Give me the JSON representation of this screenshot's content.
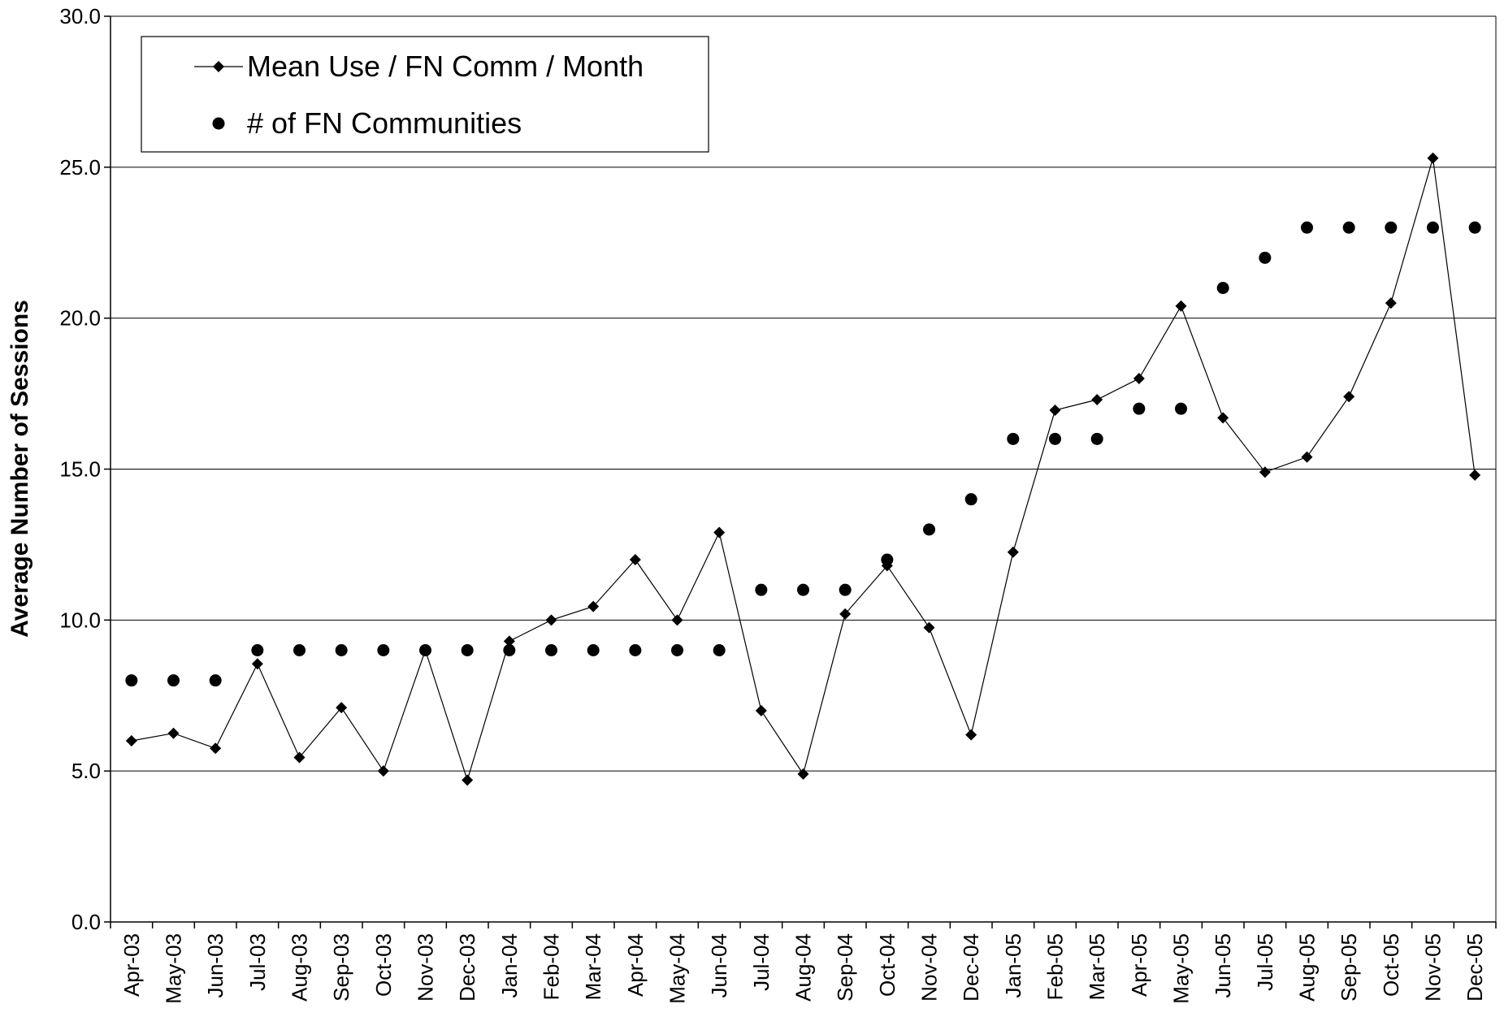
{
  "chart_data": {
    "type": "line",
    "y_label": "Average Number of Sessions",
    "categories": [
      "Apr-03",
      "May-03",
      "Jun-03",
      "Jul-03",
      "Aug-03",
      "Sep-03",
      "Oct-03",
      "Nov-03",
      "Dec-03",
      "Jan-04",
      "Feb-04",
      "Mar-04",
      "Apr-04",
      "May-04",
      "Jun-04",
      "Jul-04",
      "Aug-04",
      "Sep-04",
      "Oct-04",
      "Nov-04",
      "Dec-04",
      "Jan-05",
      "Feb-05",
      "Mar-05",
      "Apr-05",
      "May-05",
      "Jun-05",
      "Jul-05",
      "Aug-05",
      "Sep-05",
      "Oct-05",
      "Nov-05",
      "Dec-05"
    ],
    "series": [
      {
        "name": "Mean Use / FN Comm / Month",
        "type": "line",
        "color": "#000000",
        "values": [
          6.0,
          6.25,
          5.75,
          8.55,
          5.45,
          7.1,
          5.0,
          9.0,
          4.7,
          9.3,
          10.0,
          10.45,
          12.0,
          10.0,
          12.9,
          7.0,
          4.9,
          10.2,
          11.8,
          9.75,
          6.2,
          12.25,
          16.95,
          17.3,
          18.0,
          20.4,
          16.7,
          14.9,
          15.4,
          17.4,
          20.5,
          25.3,
          14.8
        ]
      },
      {
        "name": "# of FN Communities",
        "type": "scatter",
        "color": "#000000",
        "values": [
          8,
          8,
          8,
          9,
          9,
          9,
          9,
          9,
          9,
          9,
          9,
          9,
          9,
          9,
          9,
          11,
          11,
          11,
          12,
          13,
          14,
          16,
          16,
          16,
          17,
          17,
          21,
          22,
          23,
          23,
          23,
          23,
          23
        ]
      }
    ],
    "ylim": [
      0,
      30
    ],
    "yticks": [
      {
        "value": 0,
        "label": "0.0"
      },
      {
        "value": 5,
        "label": "5.0"
      },
      {
        "value": 10,
        "label": "10.0"
      },
      {
        "value": 15,
        "label": "15.0"
      },
      {
        "value": 20,
        "label": "20.0"
      },
      {
        "value": 25,
        "label": "25.0"
      },
      {
        "value": 30,
        "label": "30.0"
      }
    ],
    "grid": true,
    "legend": "top-left"
  }
}
